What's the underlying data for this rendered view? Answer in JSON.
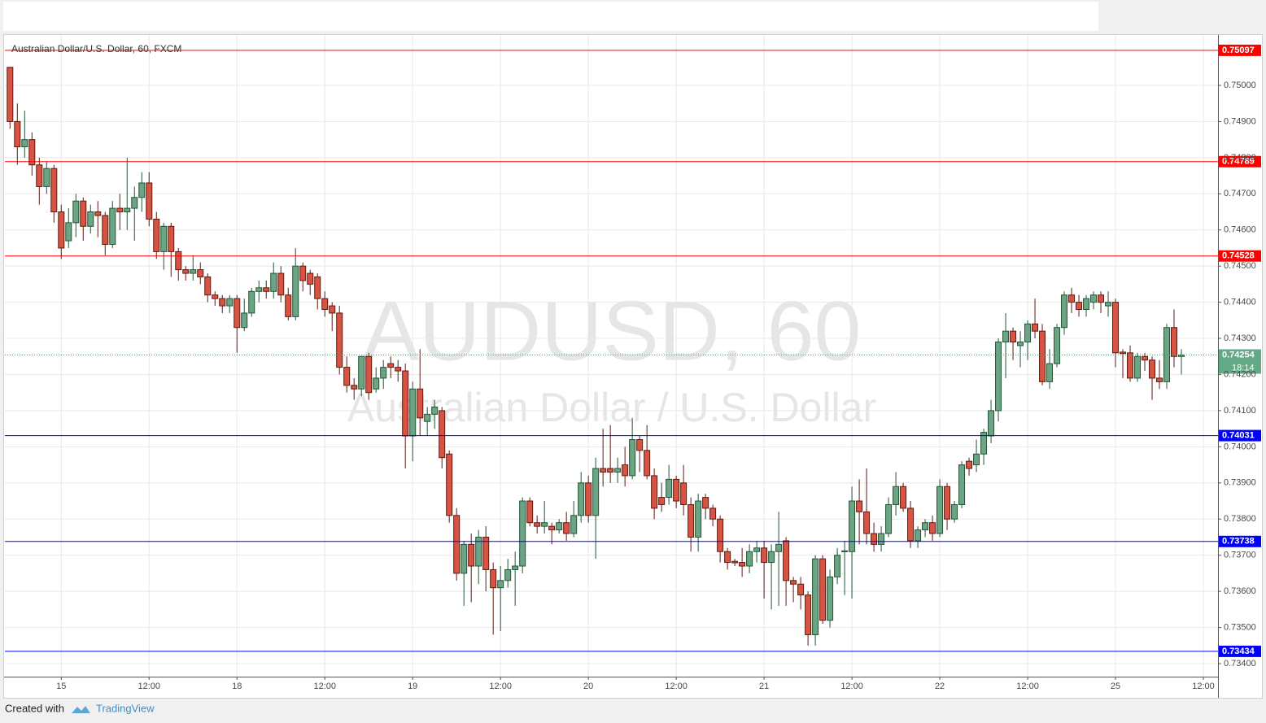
{
  "chart_data": {
    "type": "candlestick",
    "title": "Australian Dollar/U.S. Dollar, 60, FXCM",
    "watermark": "AUDUSD, 60",
    "watermark_subtitle": "Australian Dollar / U.S. Dollar",
    "up_color": "#6ba583",
    "down_color": "#d75442",
    "grid": true,
    "xlim": [
      -0.7,
      165
    ],
    "ylim": [
      0.73364,
      0.75135
    ],
    "xticks": [
      {
        "value": 7,
        "label": "15"
      },
      {
        "value": 19,
        "label": "12:00"
      },
      {
        "value": 31,
        "label": "18"
      },
      {
        "value": 43,
        "label": "12:00"
      },
      {
        "value": 55,
        "label": "19"
      },
      {
        "value": 67,
        "label": "12:00"
      },
      {
        "value": 79,
        "label": "20"
      },
      {
        "value": 91,
        "label": "12:00"
      },
      {
        "value": 103,
        "label": "21"
      },
      {
        "value": 115,
        "label": "12:00"
      },
      {
        "value": 127,
        "label": "22"
      },
      {
        "value": 139,
        "label": "12:00"
      },
      {
        "value": 151,
        "label": "25"
      },
      {
        "value": 163,
        "label": "12:00"
      }
    ],
    "yticks": [
      {
        "value": 0.734,
        "label": "0.73400"
      },
      {
        "value": 0.735,
        "label": "0.73500"
      },
      {
        "value": 0.736,
        "label": "0.73600"
      },
      {
        "value": 0.737,
        "label": "0.73700"
      },
      {
        "value": 0.738,
        "label": "0.73800"
      },
      {
        "value": 0.739,
        "label": "0.73900"
      },
      {
        "value": 0.74,
        "label": "0.74000"
      },
      {
        "value": 0.741,
        "label": "0.74100"
      },
      {
        "value": 0.742,
        "label": "0.74200"
      },
      {
        "value": 0.743,
        "label": "0.74300"
      },
      {
        "value": 0.744,
        "label": "0.74400"
      },
      {
        "value": 0.745,
        "label": "0.74500"
      },
      {
        "value": 0.746,
        "label": "0.74600"
      },
      {
        "value": 0.747,
        "label": "0.74700"
      },
      {
        "value": 0.748,
        "label": "0.74800"
      },
      {
        "value": 0.749,
        "label": "0.74900"
      },
      {
        "value": 0.75,
        "label": "0.75000"
      }
    ],
    "levels": [
      {
        "value": 0.75097,
        "color": "#ff0000"
      },
      {
        "value": 0.74789,
        "color": "#ff0000"
      },
      {
        "value": 0.74528,
        "color": "#ff0000"
      },
      {
        "value": 0.74031,
        "color": "#0000ff"
      },
      {
        "value": 0.73738,
        "color": "#0000ff"
      },
      {
        "value": 0.73434,
        "color": "#0000ff"
      }
    ],
    "last_price": 0.74254,
    "countdown": "18:14",
    "ohlc": [
      [
        0.7505,
        0.7505,
        0.7488,
        0.749
      ],
      [
        0.749,
        0.7495,
        0.7478,
        0.7483
      ],
      [
        0.7483,
        0.7493,
        0.748,
        0.7485
      ],
      [
        0.7485,
        0.7487,
        0.7475,
        0.7478
      ],
      [
        0.7478,
        0.748,
        0.7467,
        0.7472
      ],
      [
        0.7472,
        0.7479,
        0.747,
        0.7477
      ],
      [
        0.7477,
        0.7478,
        0.7462,
        0.7465
      ],
      [
        0.7465,
        0.7467,
        0.7452,
        0.7455
      ],
      [
        0.7457,
        0.7466,
        0.7455,
        0.7462
      ],
      [
        0.7462,
        0.747,
        0.7458,
        0.7468
      ],
      [
        0.7468,
        0.7469,
        0.7457,
        0.7461
      ],
      [
        0.7461,
        0.7467,
        0.7459,
        0.7465
      ],
      [
        0.7465,
        0.7468,
        0.7458,
        0.7464
      ],
      [
        0.7464,
        0.7465,
        0.7453,
        0.7456
      ],
      [
        0.7456,
        0.7468,
        0.7455,
        0.7466
      ],
      [
        0.7466,
        0.747,
        0.746,
        0.7465
      ],
      [
        0.7465,
        0.748,
        0.746,
        0.7466
      ],
      [
        0.7466,
        0.7472,
        0.7457,
        0.7469
      ],
      [
        0.7469,
        0.7476,
        0.7465,
        0.7473
      ],
      [
        0.7473,
        0.7476,
        0.7461,
        0.7463
      ],
      [
        0.7463,
        0.7465,
        0.7452,
        0.7454
      ],
      [
        0.7454,
        0.7462,
        0.7449,
        0.7461
      ],
      [
        0.7461,
        0.7462,
        0.7447,
        0.7454
      ],
      [
        0.7454,
        0.7455,
        0.7446,
        0.7449
      ],
      [
        0.7449,
        0.745,
        0.7446,
        0.7448
      ],
      [
        0.7448,
        0.7453,
        0.7446,
        0.7449
      ],
      [
        0.7449,
        0.7451,
        0.7445,
        0.7447
      ],
      [
        0.7447,
        0.7448,
        0.744,
        0.7442
      ],
      [
        0.7442,
        0.7443,
        0.7439,
        0.7441
      ],
      [
        0.7441,
        0.7442,
        0.7437,
        0.7439
      ],
      [
        0.7439,
        0.7442,
        0.7437,
        0.7441
      ],
      [
        0.7441,
        0.7442,
        0.7426,
        0.7433
      ],
      [
        0.7433,
        0.7441,
        0.7432,
        0.7437
      ],
      [
        0.7437,
        0.7444,
        0.7436,
        0.7443
      ],
      [
        0.7443,
        0.7446,
        0.744,
        0.7444
      ],
      [
        0.7444,
        0.7446,
        0.7441,
        0.7443
      ],
      [
        0.7443,
        0.7451,
        0.7441,
        0.7448
      ],
      [
        0.7448,
        0.745,
        0.744,
        0.7442
      ],
      [
        0.7442,
        0.7444,
        0.7435,
        0.7436
      ],
      [
        0.7436,
        0.7455,
        0.7435,
        0.745
      ],
      [
        0.745,
        0.7451,
        0.7443,
        0.7446
      ],
      [
        0.7448,
        0.7449,
        0.7442,
        0.7445
      ],
      [
        0.7447,
        0.7448,
        0.7438,
        0.7441
      ],
      [
        0.7441,
        0.7443,
        0.7436,
        0.7438
      ],
      [
        0.7439,
        0.744,
        0.7432,
        0.7437
      ],
      [
        0.7437,
        0.7439,
        0.742,
        0.7422
      ],
      [
        0.7422,
        0.7425,
        0.7415,
        0.7417
      ],
      [
        0.7417,
        0.7419,
        0.7413,
        0.7416
      ],
      [
        0.7416,
        0.7425,
        0.7414,
        0.7425
      ],
      [
        0.7425,
        0.7426,
        0.7413,
        0.7415
      ],
      [
        0.7416,
        0.7422,
        0.7415,
        0.7419
      ],
      [
        0.7419,
        0.7424,
        0.7416,
        0.7422
      ],
      [
        0.7423,
        0.7425,
        0.7419,
        0.7422
      ],
      [
        0.7422,
        0.7424,
        0.7418,
        0.7421
      ],
      [
        0.7421,
        0.7423,
        0.7394,
        0.7403
      ],
      [
        0.7403,
        0.7418,
        0.7396,
        0.7416
      ],
      [
        0.7416,
        0.7427,
        0.7403,
        0.7408
      ],
      [
        0.7407,
        0.7411,
        0.7403,
        0.7409
      ],
      [
        0.7409,
        0.7413,
        0.7405,
        0.7411
      ],
      [
        0.741,
        0.7411,
        0.7394,
        0.7397
      ],
      [
        0.7398,
        0.7399,
        0.7379,
        0.7381
      ],
      [
        0.7381,
        0.7383,
        0.7363,
        0.7365
      ],
      [
        0.7365,
        0.7374,
        0.7356,
        0.7373
      ],
      [
        0.7373,
        0.7376,
        0.7357,
        0.7367
      ],
      [
        0.7367,
        0.7377,
        0.7362,
        0.7375
      ],
      [
        0.7375,
        0.7378,
        0.736,
        0.7366
      ],
      [
        0.7366,
        0.7368,
        0.7348,
        0.7361
      ],
      [
        0.7361,
        0.7367,
        0.7349,
        0.7363
      ],
      [
        0.7363,
        0.7369,
        0.7361,
        0.7366
      ],
      [
        0.7366,
        0.7371,
        0.7356,
        0.7367
      ],
      [
        0.7367,
        0.7386,
        0.7365,
        0.7385
      ],
      [
        0.7385,
        0.7386,
        0.7378,
        0.7379
      ],
      [
        0.7379,
        0.7381,
        0.7376,
        0.7378
      ],
      [
        0.7378,
        0.7385,
        0.7376,
        0.7379
      ],
      [
        0.7378,
        0.7379,
        0.7373,
        0.7377
      ],
      [
        0.7377,
        0.738,
        0.7376,
        0.7379
      ],
      [
        0.7379,
        0.7382,
        0.7374,
        0.7376
      ],
      [
        0.7376,
        0.7385,
        0.7375,
        0.7381
      ],
      [
        0.7381,
        0.7393,
        0.7379,
        0.739
      ],
      [
        0.739,
        0.7392,
        0.7379,
        0.7381
      ],
      [
        0.7381,
        0.7397,
        0.7369,
        0.7394
      ],
      [
        0.7394,
        0.7405,
        0.7389,
        0.7393
      ],
      [
        0.7394,
        0.7406,
        0.739,
        0.7393
      ],
      [
        0.7393,
        0.7397,
        0.739,
        0.7394
      ],
      [
        0.7395,
        0.74,
        0.7389,
        0.7392
      ],
      [
        0.7392,
        0.7408,
        0.7391,
        0.7402
      ],
      [
        0.7402,
        0.7403,
        0.7393,
        0.7399
      ],
      [
        0.7399,
        0.7406,
        0.7391,
        0.7392
      ],
      [
        0.7392,
        0.7394,
        0.738,
        0.7383
      ],
      [
        0.7386,
        0.739,
        0.7382,
        0.7384
      ],
      [
        0.7386,
        0.7395,
        0.7384,
        0.7391
      ],
      [
        0.7391,
        0.7392,
        0.7383,
        0.7385
      ],
      [
        0.739,
        0.7395,
        0.7381,
        0.7384
      ],
      [
        0.7384,
        0.7386,
        0.7371,
        0.7375
      ],
      [
        0.7375,
        0.7387,
        0.7371,
        0.7385
      ],
      [
        0.7386,
        0.7387,
        0.738,
        0.7383
      ],
      [
        0.7383,
        0.7384,
        0.7378,
        0.738
      ],
      [
        0.738,
        0.7381,
        0.7368,
        0.7371
      ],
      [
        0.7371,
        0.7372,
        0.7366,
        0.7368
      ],
      [
        0.73683,
        0.7369,
        0.7367,
        0.73679
      ],
      [
        0.7368,
        0.7372,
        0.7364,
        0.7367
      ],
      [
        0.7367,
        0.7373,
        0.7365,
        0.7371
      ],
      [
        0.7371,
        0.7374,
        0.7368,
        0.7372
      ],
      [
        0.7372,
        0.7374,
        0.7358,
        0.7368
      ],
      [
        0.7368,
        0.7373,
        0.7355,
        0.7371
      ],
      [
        0.7371,
        0.7382,
        0.7356,
        0.7373
      ],
      [
        0.7374,
        0.7375,
        0.7356,
        0.7363
      ],
      [
        0.7363,
        0.7364,
        0.7357,
        0.7362
      ],
      [
        0.7362,
        0.7364,
        0.7355,
        0.7359
      ],
      [
        0.7359,
        0.736,
        0.7345,
        0.7348
      ],
      [
        0.7348,
        0.737,
        0.7345,
        0.7369
      ],
      [
        0.7369,
        0.737,
        0.7351,
        0.7352
      ],
      [
        0.7352,
        0.7366,
        0.735,
        0.7364
      ],
      [
        0.7364,
        0.7372,
        0.7362,
        0.737
      ],
      [
        0.7371,
        0.7374,
        0.7359,
        0.73712
      ],
      [
        0.7371,
        0.7389,
        0.7358,
        0.7385
      ],
      [
        0.7385,
        0.7391,
        0.7373,
        0.7382
      ],
      [
        0.7382,
        0.7394,
        0.7373,
        0.7376
      ],
      [
        0.7376,
        0.7379,
        0.7371,
        0.7373
      ],
      [
        0.7373,
        0.7378,
        0.7371,
        0.7376
      ],
      [
        0.7376,
        0.7386,
        0.7375,
        0.7384
      ],
      [
        0.7384,
        0.7393,
        0.7381,
        0.7389
      ],
      [
        0.7389,
        0.739,
        0.7382,
        0.7383
      ],
      [
        0.7383,
        0.7385,
        0.7372,
        0.7374
      ],
      [
        0.7374,
        0.7378,
        0.7372,
        0.7377
      ],
      [
        0.7377,
        0.738,
        0.7375,
        0.7379
      ],
      [
        0.7379,
        0.7381,
        0.7374,
        0.7376
      ],
      [
        0.7376,
        0.7391,
        0.7375,
        0.7389
      ],
      [
        0.7389,
        0.739,
        0.7377,
        0.738
      ],
      [
        0.738,
        0.7385,
        0.7379,
        0.7384
      ],
      [
        0.7384,
        0.7396,
        0.7383,
        0.7395
      ],
      [
        0.7396,
        0.7397,
        0.7392,
        0.7394
      ],
      [
        0.7395,
        0.7402,
        0.7393,
        0.7398
      ],
      [
        0.7398,
        0.7405,
        0.7395,
        0.7404
      ],
      [
        0.7403,
        0.7413,
        0.7401,
        0.741
      ],
      [
        0.741,
        0.743,
        0.7407,
        0.7429
      ],
      [
        0.7429,
        0.7437,
        0.7419,
        0.7432
      ],
      [
        0.7432,
        0.7433,
        0.7424,
        0.7429
      ],
      [
        0.7428,
        0.7432,
        0.7422,
        0.7429
      ],
      [
        0.7429,
        0.7435,
        0.7424,
        0.7434
      ],
      [
        0.7434,
        0.7441,
        0.743,
        0.7432
      ],
      [
        0.7432,
        0.7434,
        0.7417,
        0.7418
      ],
      [
        0.7418,
        0.7427,
        0.7416,
        0.7423
      ],
      [
        0.7423,
        0.7434,
        0.7422,
        0.7433
      ],
      [
        0.7433,
        0.7443,
        0.7431,
        0.7442
      ],
      [
        0.7442,
        0.7444,
        0.7437,
        0.744
      ],
      [
        0.744,
        0.7442,
        0.7436,
        0.7438
      ],
      [
        0.7438,
        0.7442,
        0.7436,
        0.7441
      ],
      [
        0.744,
        0.7443,
        0.7438,
        0.7442
      ],
      [
        0.7442,
        0.7443,
        0.7437,
        0.744
      ],
      [
        0.7439,
        0.7443,
        0.7436,
        0.744
      ],
      [
        0.744,
        0.7441,
        0.7422,
        0.7426
      ],
      [
        0.74262,
        0.7427,
        0.7419,
        0.74258
      ],
      [
        0.7426,
        0.7428,
        0.7418,
        0.7419
      ],
      [
        0.7419,
        0.7426,
        0.7418,
        0.7425
      ],
      [
        0.7425,
        0.7426,
        0.7421,
        0.7424
      ],
      [
        0.7424,
        0.7425,
        0.7413,
        0.7419
      ],
      [
        0.7419,
        0.7424,
        0.7416,
        0.7418
      ],
      [
        0.7418,
        0.7434,
        0.7416,
        0.7433
      ],
      [
        0.7433,
        0.7438,
        0.7422,
        0.7425
      ],
      [
        0.7425,
        0.7427,
        0.742,
        0.74254
      ]
    ]
  },
  "footer": {
    "prefix": "Created with",
    "brand": "TradingView"
  }
}
